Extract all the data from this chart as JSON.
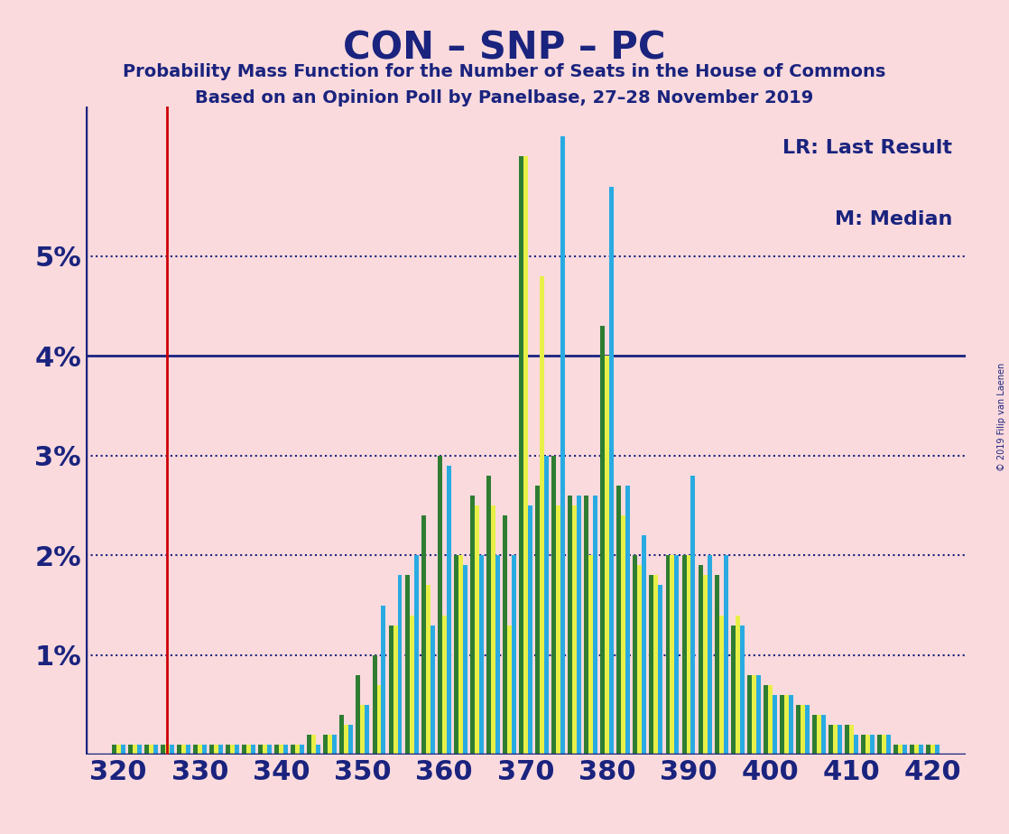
{
  "title": "CON – SNP – PC",
  "subtitle1": "Probability Mass Function for the Number of Seats in the House of Commons",
  "subtitle2": "Based on an Opinion Poll by Panelbase, 27–28 November 2019",
  "copyright": "© 2019 Filip van Laenen",
  "legend_lr": "LR: Last Result",
  "legend_m": "M: Median",
  "background_color": "#fadadd",
  "bar_colors": [
    "#2e7d32",
    "#e8f048",
    "#29abe2"
  ],
  "axis_color": "#1a237e",
  "grid_color": "#1a237e",
  "vline_color": "#cc0000",
  "vline_x": 326,
  "xlim": [
    316,
    424
  ],
  "ylim": [
    0,
    0.065
  ],
  "yticks": [
    0.0,
    0.01,
    0.02,
    0.03,
    0.04,
    0.05
  ],
  "ytick_labels": [
    "",
    "1%",
    "2%",
    "3%",
    "4%",
    "5%"
  ],
  "hline_solid": [
    0.04
  ],
  "hline_dot": [
    0.01,
    0.02,
    0.03,
    0.05
  ],
  "xlabel_ticks": [
    320,
    330,
    340,
    350,
    360,
    370,
    380,
    390,
    400,
    410,
    420
  ],
  "seats": [
    320,
    322,
    324,
    326,
    328,
    330,
    332,
    334,
    336,
    338,
    340,
    342,
    344,
    346,
    348,
    350,
    352,
    354,
    356,
    358,
    360,
    362,
    364,
    366,
    368,
    370,
    372,
    374,
    376,
    378,
    380,
    382,
    384,
    386,
    388,
    390,
    392,
    394,
    396,
    398,
    400,
    402,
    404,
    406,
    408,
    410,
    412,
    414,
    416,
    418,
    420
  ],
  "green_vals": [
    0.001,
    0.001,
    0.001,
    0.001,
    0.001,
    0.001,
    0.001,
    0.001,
    0.001,
    0.001,
    0.001,
    0.001,
    0.002,
    0.002,
    0.004,
    0.008,
    0.01,
    0.013,
    0.018,
    0.024,
    0.03,
    0.02,
    0.026,
    0.028,
    0.024,
    0.06,
    0.027,
    0.03,
    0.026,
    0.026,
    0.043,
    0.027,
    0.02,
    0.018,
    0.02,
    0.02,
    0.019,
    0.018,
    0.013,
    0.008,
    0.007,
    0.006,
    0.005,
    0.004,
    0.003,
    0.003,
    0.002,
    0.002,
    0.001,
    0.001,
    0.001
  ],
  "yellow_vals": [
    0.001,
    0.001,
    0.001,
    0.001,
    0.001,
    0.001,
    0.001,
    0.001,
    0.001,
    0.001,
    0.001,
    0.001,
    0.002,
    0.002,
    0.003,
    0.005,
    0.007,
    0.013,
    0.014,
    0.017,
    0.014,
    0.02,
    0.025,
    0.025,
    0.013,
    0.06,
    0.048,
    0.025,
    0.025,
    0.02,
    0.04,
    0.024,
    0.019,
    0.018,
    0.02,
    0.02,
    0.018,
    0.014,
    0.014,
    0.008,
    0.007,
    0.006,
    0.005,
    0.004,
    0.003,
    0.003,
    0.002,
    0.002,
    0.001,
    0.001,
    0.001
  ],
  "blue_vals": [
    0.001,
    0.001,
    0.001,
    0.001,
    0.001,
    0.001,
    0.001,
    0.001,
    0.001,
    0.001,
    0.001,
    0.001,
    0.001,
    0.002,
    0.003,
    0.005,
    0.015,
    0.018,
    0.02,
    0.013,
    0.029,
    0.019,
    0.02,
    0.02,
    0.02,
    0.025,
    0.03,
    0.062,
    0.026,
    0.026,
    0.057,
    0.027,
    0.022,
    0.017,
    0.02,
    0.028,
    0.02,
    0.02,
    0.013,
    0.008,
    0.006,
    0.006,
    0.005,
    0.004,
    0.003,
    0.002,
    0.002,
    0.002,
    0.001,
    0.001,
    0.001
  ]
}
